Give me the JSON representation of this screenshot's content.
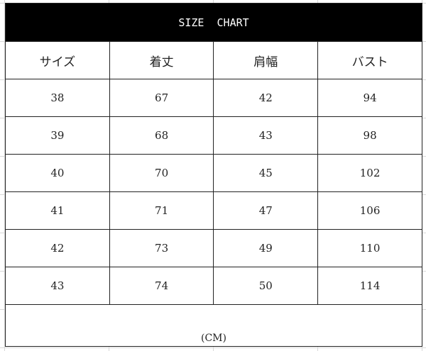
{
  "title": "SIZE  CHART",
  "headers": [
    "サイズ",
    "着丈",
    "肩幅",
    "バスト"
  ],
  "rows": [
    [
      "38",
      "67",
      "42",
      "94"
    ],
    [
      "39",
      "68",
      "43",
      "98"
    ],
    [
      "40",
      "70",
      "45",
      "102"
    ],
    [
      "41",
      "71",
      "47",
      "106"
    ],
    [
      "42",
      "73",
      "49",
      "110"
    ],
    [
      "43",
      "74",
      "50",
      "114"
    ]
  ],
  "unit": "(CM)"
}
